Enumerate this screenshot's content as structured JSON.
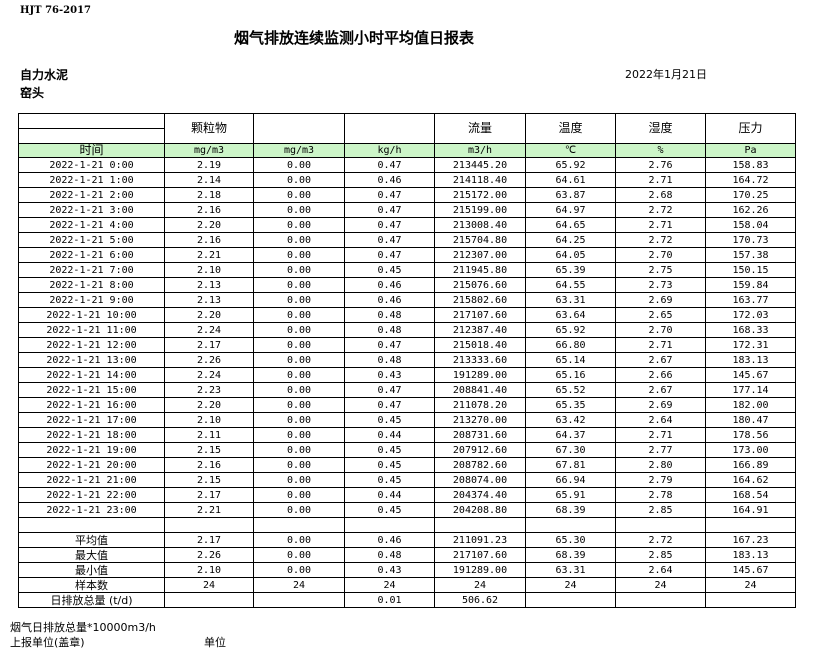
{
  "standard": "HJT  76-2017",
  "title": "烟气排放连续监测小时平均值日报表",
  "company": "自力水泥",
  "site": "窑头",
  "date": "2022年1月21日",
  "table": {
    "headers": [
      "",
      "颗粒物",
      "",
      "",
      "流量",
      "温度",
      "湿度",
      "压力"
    ],
    "units": [
      "时间",
      "mg/m3",
      "mg/m3",
      "kg/h",
      "m3/h",
      "℃",
      "%",
      "Pa"
    ],
    "rows": [
      [
        "2022-1-21 0:00",
        "2.19",
        "0.00",
        "0.47",
        "213445.20",
        "65.92",
        "2.76",
        "158.83"
      ],
      [
        "2022-1-21 1:00",
        "2.14",
        "0.00",
        "0.46",
        "214118.40",
        "64.61",
        "2.71",
        "164.72"
      ],
      [
        "2022-1-21 2:00",
        "2.18",
        "0.00",
        "0.47",
        "215172.00",
        "63.87",
        "2.68",
        "170.25"
      ],
      [
        "2022-1-21 3:00",
        "2.16",
        "0.00",
        "0.47",
        "215199.00",
        "64.97",
        "2.72",
        "162.26"
      ],
      [
        "2022-1-21 4:00",
        "2.20",
        "0.00",
        "0.47",
        "213008.40",
        "64.65",
        "2.71",
        "158.04"
      ],
      [
        "2022-1-21 5:00",
        "2.16",
        "0.00",
        "0.47",
        "215704.80",
        "64.25",
        "2.72",
        "170.73"
      ],
      [
        "2022-1-21 6:00",
        "2.21",
        "0.00",
        "0.47",
        "212307.00",
        "64.05",
        "2.70",
        "157.38"
      ],
      [
        "2022-1-21 7:00",
        "2.10",
        "0.00",
        "0.45",
        "211945.80",
        "65.39",
        "2.75",
        "150.15"
      ],
      [
        "2022-1-21 8:00",
        "2.13",
        "0.00",
        "0.46",
        "215076.60",
        "64.55",
        "2.73",
        "159.84"
      ],
      [
        "2022-1-21 9:00",
        "2.13",
        "0.00",
        "0.46",
        "215802.60",
        "63.31",
        "2.69",
        "163.77"
      ],
      [
        "2022-1-21 10:00",
        "2.20",
        "0.00",
        "0.48",
        "217107.60",
        "63.64",
        "2.65",
        "172.03"
      ],
      [
        "2022-1-21 11:00",
        "2.24",
        "0.00",
        "0.48",
        "212387.40",
        "65.92",
        "2.70",
        "168.33"
      ],
      [
        "2022-1-21 12:00",
        "2.17",
        "0.00",
        "0.47",
        "215018.40",
        "66.80",
        "2.71",
        "172.31"
      ],
      [
        "2022-1-21 13:00",
        "2.26",
        "0.00",
        "0.48",
        "213333.60",
        "65.14",
        "2.67",
        "183.13"
      ],
      [
        "2022-1-21 14:00",
        "2.24",
        "0.00",
        "0.43",
        "191289.00",
        "65.16",
        "2.66",
        "145.67"
      ],
      [
        "2022-1-21 15:00",
        "2.23",
        "0.00",
        "0.47",
        "208841.40",
        "65.52",
        "2.67",
        "177.14"
      ],
      [
        "2022-1-21 16:00",
        "2.20",
        "0.00",
        "0.47",
        "211078.20",
        "65.35",
        "2.69",
        "182.00"
      ],
      [
        "2022-1-21 17:00",
        "2.10",
        "0.00",
        "0.45",
        "213270.00",
        "63.42",
        "2.64",
        "180.47"
      ],
      [
        "2022-1-21 18:00",
        "2.11",
        "0.00",
        "0.44",
        "208731.60",
        "64.37",
        "2.71",
        "178.56"
      ],
      [
        "2022-1-21 19:00",
        "2.15",
        "0.00",
        "0.45",
        "207912.60",
        "67.30",
        "2.77",
        "173.00"
      ],
      [
        "2022-1-21 20:00",
        "2.16",
        "0.00",
        "0.45",
        "208782.60",
        "67.81",
        "2.80",
        "166.89"
      ],
      [
        "2022-1-21 21:00",
        "2.15",
        "0.00",
        "0.45",
        "208074.00",
        "66.94",
        "2.79",
        "164.62"
      ],
      [
        "2022-1-21 22:00",
        "2.17",
        "0.00",
        "0.44",
        "204374.40",
        "65.91",
        "2.78",
        "168.54"
      ],
      [
        "2022-1-21 23:00",
        "2.21",
        "0.00",
        "0.45",
        "204208.80",
        "68.39",
        "2.85",
        "164.91"
      ]
    ],
    "summary": [
      [
        "平均值",
        "2.17",
        "0.00",
        "0.46",
        "211091.23",
        "65.30",
        "2.72",
        "167.23"
      ],
      [
        "最大值",
        "2.26",
        "0.00",
        "0.48",
        "217107.60",
        "68.39",
        "2.85",
        "183.13"
      ],
      [
        "最小值",
        "2.10",
        "0.00",
        "0.43",
        "191289.00",
        "63.31",
        "2.64",
        "145.67"
      ],
      [
        "样本数",
        "24",
        "24",
        "24",
        "24",
        "24",
        "24",
        "24"
      ],
      [
        "日排放总量 (t/d)",
        "",
        "",
        "0.01",
        "506.62",
        "",
        "",
        ""
      ]
    ]
  },
  "footer": {
    "note": "烟气日排放总量*10000m3/h",
    "reporter": "上报单位(盖章)",
    "unit": "单位"
  },
  "colors": {
    "unit_row_bg": "#ccf5c8"
  }
}
